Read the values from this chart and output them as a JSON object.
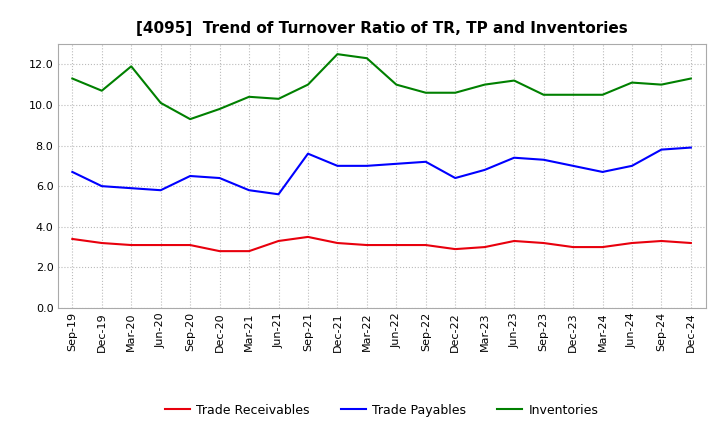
{
  "title": "[4095]  Trend of Turnover Ratio of TR, TP and Inventories",
  "x_labels": [
    "Sep-19",
    "Dec-19",
    "Mar-20",
    "Jun-20",
    "Sep-20",
    "Dec-20",
    "Mar-21",
    "Jun-21",
    "Sep-21",
    "Dec-21",
    "Mar-22",
    "Jun-22",
    "Sep-22",
    "Dec-22",
    "Mar-23",
    "Jun-23",
    "Sep-23",
    "Dec-23",
    "Mar-24",
    "Jun-24",
    "Sep-24",
    "Dec-24"
  ],
  "trade_receivables": [
    3.4,
    3.2,
    3.1,
    3.1,
    3.1,
    2.8,
    2.8,
    3.3,
    3.5,
    3.2,
    3.1,
    3.1,
    3.1,
    2.9,
    3.0,
    3.3,
    3.2,
    3.0,
    3.0,
    3.2,
    3.3,
    3.2
  ],
  "trade_payables": [
    6.7,
    6.0,
    5.9,
    5.8,
    6.5,
    6.4,
    5.8,
    5.6,
    7.6,
    7.0,
    7.0,
    7.1,
    7.2,
    6.4,
    6.8,
    7.4,
    7.3,
    7.0,
    6.7,
    7.0,
    7.8,
    7.9
  ],
  "inventories": [
    11.3,
    10.7,
    11.9,
    10.1,
    9.3,
    9.8,
    10.4,
    10.3,
    11.0,
    12.5,
    12.3,
    11.0,
    10.6,
    10.6,
    11.0,
    11.2,
    10.5,
    10.5,
    10.5,
    11.1,
    11.0,
    11.3
  ],
  "tr_color": "#e8000d",
  "tp_color": "#0000ff",
  "inv_color": "#008000",
  "legend_tr": "Trade Receivables",
  "legend_tp": "Trade Payables",
  "legend_inv": "Inventories",
  "ylim": [
    0,
    13.0
  ],
  "yticks": [
    0.0,
    2.0,
    4.0,
    6.0,
    8.0,
    10.0,
    12.0
  ],
  "line_width": 1.5,
  "bg_color": "#ffffff",
  "plot_bg_color": "#ffffff",
  "grid_color": "#bbbbbb",
  "title_fontsize": 11,
  "tick_fontsize": 8,
  "legend_fontsize": 9
}
